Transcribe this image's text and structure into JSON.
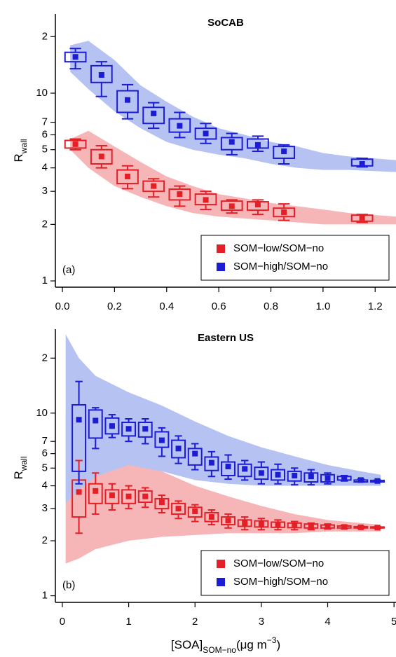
{
  "chart_data": [
    {
      "type": "box",
      "title": "SoCAB",
      "panel_label": "(a)",
      "ylabel": [
        "R",
        "wall"
      ],
      "log_y": true,
      "legend": "lower right",
      "xlim": [
        -0.027,
        1.28
      ],
      "xticks": [
        {
          "value": 0,
          "label": "0.0"
        },
        {
          "value": 0.2,
          "label": "0.2"
        },
        {
          "value": 0.4,
          "label": "0.4"
        },
        {
          "value": 0.6,
          "label": "0.6"
        },
        {
          "value": 0.8,
          "label": "0.8"
        },
        {
          "value": 1,
          "label": "1.0"
        },
        {
          "value": 1.2,
          "label": "1.2"
        }
      ],
      "ylim": [
        0.926,
        26.4
      ],
      "yticks": [
        1,
        2,
        3,
        4,
        5,
        6,
        7,
        10,
        {
          "value": 20,
          "label": "2"
        }
      ],
      "series": [
        {
          "name": "SOM−low/SOM−no",
          "color": "#e41f26",
          "cloud_color": "#f6b6b8",
          "x": [
            0.05,
            0.15,
            0.25,
            0.35,
            0.45,
            0.55,
            0.65,
            0.75,
            0.85,
            1.15
          ],
          "whisker_high": [
            5.7,
            5.25,
            4.1,
            3.5,
            3.2,
            3.0,
            2.7,
            2.7,
            2.57,
            2.26
          ],
          "q3": [
            5.6,
            5.0,
            3.9,
            3.4,
            3.08,
            2.9,
            2.66,
            2.64,
            2.44,
            2.24
          ],
          "mean": [
            5.35,
            4.6,
            3.6,
            3.2,
            2.9,
            2.7,
            2.5,
            2.55,
            2.32,
            2.17
          ],
          "q1": [
            5.1,
            4.2,
            3.3,
            3.0,
            2.7,
            2.55,
            2.38,
            2.38,
            2.2,
            2.08
          ],
          "whisker_low": [
            5.0,
            4.0,
            3.1,
            2.8,
            2.5,
            2.4,
            2.3,
            2.26,
            2.1,
            2.05
          ],
          "cloud": {
            "x": [
              0.03,
              0.1,
              0.2,
              0.3,
              0.4,
              0.5,
              0.6,
              0.7,
              0.8,
              0.9,
              1.0,
              1.1,
              1.28
            ],
            "low": [
              5.0,
              4.0,
              3.2,
              2.8,
              2.5,
              2.3,
              2.2,
              2.15,
              2.1,
              2.05,
              2.0,
              2.0,
              2.0
            ],
            "high": [
              5.7,
              6.3,
              5.2,
              4.3,
              3.6,
              3.2,
              2.9,
              2.75,
              2.6,
              2.5,
              2.4,
              2.3,
              2.2
            ]
          }
        },
        {
          "name": "SOM−high/SOM−no",
          "color": "#1c1cd4",
          "cloud_color": "#b6c3f2",
          "x": [
            0.05,
            0.15,
            0.25,
            0.35,
            0.45,
            0.55,
            0.65,
            0.75,
            0.85,
            1.15
          ],
          "whisker_high": [
            17.3,
            14.7,
            11.1,
            8.9,
            7.9,
            6.9,
            6.1,
            5.9,
            5.3,
            4.5
          ],
          "q3": [
            16.5,
            14.0,
            10.3,
            8.4,
            7.3,
            6.5,
            5.8,
            5.7,
            5.2,
            4.45
          ],
          "mean": [
            15.6,
            12.5,
            9.2,
            7.8,
            6.7,
            6.1,
            5.5,
            5.3,
            4.9,
            4.2
          ],
          "q1": [
            14.7,
            11.4,
            7.9,
            6.9,
            6.2,
            5.7,
            5.0,
            5.1,
            4.5,
            4.1
          ],
          "whisker_low": [
            13.5,
            9.6,
            7.3,
            6.5,
            5.8,
            5.4,
            4.7,
            4.9,
            4.2,
            4.05
          ],
          "cloud": {
            "x": [
              0.03,
              0.1,
              0.2,
              0.3,
              0.4,
              0.5,
              0.6,
              0.7,
              0.8,
              0.9,
              1.0,
              1.1,
              1.28
            ],
            "low": [
              13.0,
              10.5,
              8.0,
              6.5,
              5.5,
              5.0,
              4.7,
              4.5,
              4.2,
              4.0,
              3.9,
              3.9,
              3.8
            ],
            "high": [
              18.0,
              19.0,
              15.0,
              11.0,
              9.0,
              7.5,
              6.5,
              6.0,
              5.5,
              5.2,
              4.8,
              4.6,
              4.4
            ]
          }
        }
      ]
    },
    {
      "type": "box",
      "title": "Eastern US",
      "panel_label": "(b)",
      "ylabel": [
        "R",
        "wall"
      ],
      "xlabel": [
        "[SOA]",
        "SOM−no",
        "(μg m",
        "−3",
        ")"
      ],
      "log_y": true,
      "legend": "lower right",
      "xlim": [
        -0.105,
        5.03
      ],
      "xticks": [
        0,
        1,
        2,
        3,
        4,
        5
      ],
      "ylim": [
        0.92,
        28.8
      ],
      "yticks": [
        1,
        2,
        3,
        4,
        5,
        6,
        7,
        10,
        {
          "value": 20,
          "label": "2"
        }
      ],
      "series": [
        {
          "name": "SOM−low/SOM−no",
          "color": "#e41f26",
          "cloud_color": "#f6b6b8",
          "x": [
            0.25,
            0.5,
            0.75,
            1,
            1.25,
            1.5,
            1.75,
            2,
            2.25,
            2.5,
            2.75,
            3,
            3.25,
            3.5,
            3.75,
            4,
            4.25,
            4.5,
            4.75
          ],
          "whisker_high": [
            5.5,
            4.7,
            4.1,
            4.0,
            3.9,
            3.55,
            3.3,
            3.15,
            2.95,
            2.8,
            2.7,
            2.65,
            2.6,
            2.55,
            2.5,
            2.47,
            2.43,
            2.4,
            2.39
          ],
          "q3": [
            4.3,
            4.1,
            3.8,
            3.8,
            3.75,
            3.4,
            3.2,
            3.05,
            2.85,
            2.7,
            2.6,
            2.57,
            2.53,
            2.5,
            2.47,
            2.44,
            2.41,
            2.39,
            2.38
          ],
          "mean": [
            3.7,
            3.75,
            3.55,
            3.5,
            3.5,
            3.25,
            3.0,
            2.9,
            2.7,
            2.58,
            2.5,
            2.47,
            2.45,
            2.43,
            2.4,
            2.39,
            2.38,
            2.37,
            2.36
          ],
          "q1": [
            2.7,
            3.2,
            3.2,
            3.2,
            3.25,
            3.0,
            2.8,
            2.7,
            2.55,
            2.45,
            2.4,
            2.38,
            2.37,
            2.36,
            2.35,
            2.35,
            2.35,
            2.35,
            2.35
          ],
          "whisker_low": [
            2.2,
            2.8,
            2.95,
            3.0,
            3.05,
            2.85,
            2.65,
            2.55,
            2.45,
            2.35,
            2.3,
            2.3,
            2.3,
            2.3,
            2.3,
            2.32,
            2.33,
            2.34,
            2.34
          ],
          "cloud": {
            "x": [
              0.05,
              0.25,
              0.5,
              1,
              1.5,
              2,
              2.5,
              3,
              3.5,
              4,
              4.5,
              4.8
            ],
            "low": [
              1.5,
              1.6,
              1.8,
              2.0,
              2.1,
              2.15,
              2.2,
              2.2,
              2.2,
              2.25,
              2.25,
              2.25
            ],
            "high": [
              10,
              8,
              6.5,
              5.5,
              4.8,
              4.0,
              3.5,
              3.1,
              2.8,
              2.6,
              2.5,
              2.45
            ]
          }
        },
        {
          "name": "SOM−high/SOM−no",
          "color": "#1c1cd4",
          "cloud_color": "#b6c3f2",
          "x": [
            0.25,
            0.5,
            0.75,
            1,
            1.25,
            1.5,
            1.75,
            2,
            2.25,
            2.5,
            2.75,
            3,
            3.25,
            3.5,
            3.75,
            4,
            4.25,
            4.5,
            4.75
          ],
          "whisker_high": [
            14.9,
            10.7,
            9.8,
            9.3,
            9.3,
            8.3,
            7.5,
            6.8,
            6.15,
            5.9,
            5.5,
            5.4,
            5.25,
            5.0,
            4.9,
            4.7,
            4.55,
            4.35,
            4.3
          ],
          "q3": [
            11.1,
            10.4,
            9.4,
            8.9,
            8.9,
            7.9,
            7.1,
            6.4,
            5.75,
            5.4,
            5.25,
            5.05,
            4.9,
            4.8,
            4.7,
            4.6,
            4.5,
            4.3,
            4.28
          ],
          "mean": [
            9.2,
            9.1,
            8.5,
            8.2,
            8.2,
            7.1,
            6.4,
            6.0,
            5.35,
            5.1,
            4.95,
            4.7,
            4.6,
            4.55,
            4.5,
            4.4,
            4.4,
            4.3,
            4.25
          ],
          "q1": [
            4.8,
            7.3,
            7.7,
            7.5,
            7.4,
            6.5,
            5.7,
            5.2,
            4.85,
            4.55,
            4.5,
            4.35,
            4.3,
            4.25,
            4.2,
            4.2,
            4.3,
            4.2,
            4.2
          ],
          "whisker_low": [
            4.1,
            6.4,
            7.35,
            7.0,
            6.8,
            5.8,
            5.3,
            4.9,
            4.5,
            4.35,
            4.3,
            4.1,
            4.1,
            4.05,
            4.05,
            4.1,
            4.25,
            4.2,
            4.2
          ],
          "cloud": {
            "x": [
              0.05,
              0.25,
              0.5,
              1,
              1.5,
              2,
              2.5,
              3,
              3.5,
              4,
              4.5,
              4.8
            ],
            "low": [
              3.2,
              3.8,
              4.5,
              5.2,
              4.8,
              4.3,
              4.1,
              4.0,
              4.0,
              4.0,
              4.0,
              4.0
            ],
            "high": [
              27,
              20,
              16,
              13,
              11,
              9,
              7.5,
              6.5,
              5.8,
              5.2,
              4.8,
              4.6
            ]
          }
        }
      ]
    }
  ]
}
